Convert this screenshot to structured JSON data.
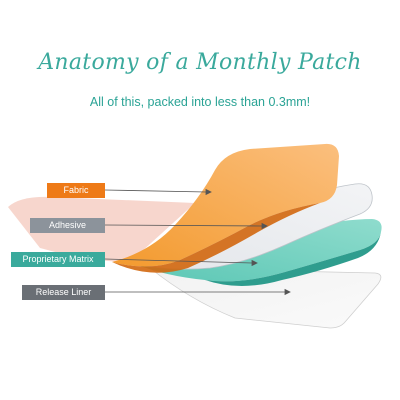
{
  "title": "Anatomy of a Monthly Patch",
  "subtitle": "All of this, packed into less than 0.3mm!",
  "layers": [
    {
      "label": "Fabric",
      "color": "#ee7a17"
    },
    {
      "label": "Adhesive",
      "color": "#8c939b"
    },
    {
      "label": "Proprietary Matrix",
      "color": "#3aaa9c"
    },
    {
      "label": "Release Liner",
      "color": "#6a6f75"
    }
  ]
}
